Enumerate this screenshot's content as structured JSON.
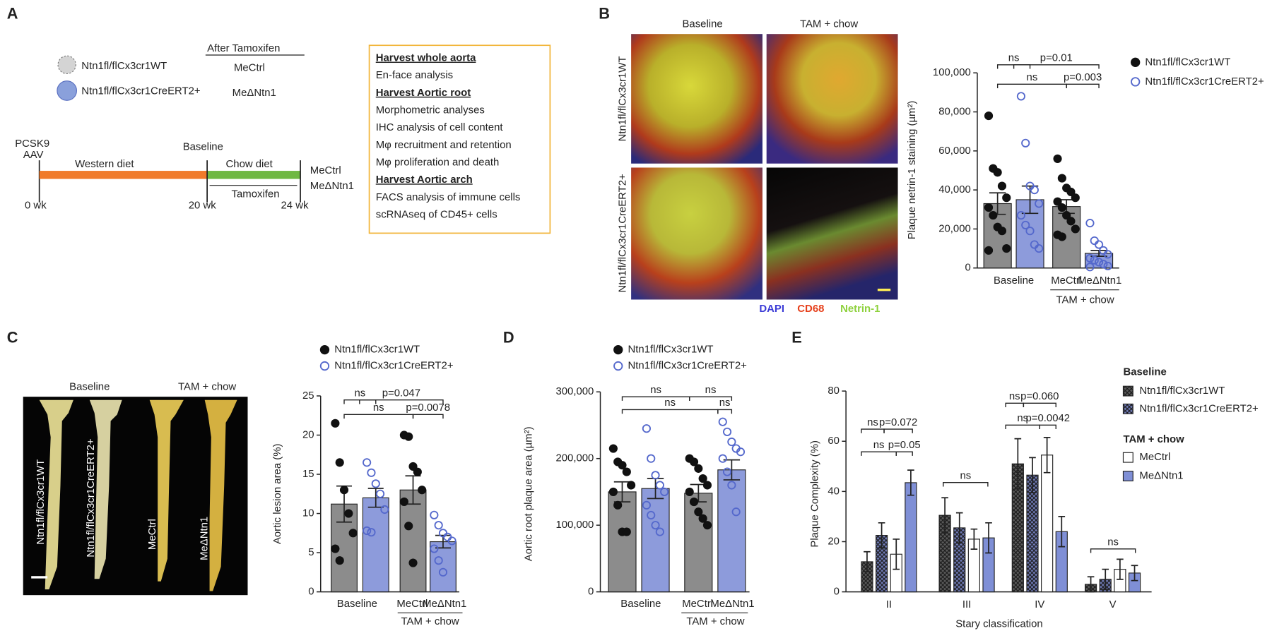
{
  "panels": {
    "a": {
      "label": "A",
      "after_title": "After Tamoxifen",
      "mice": [
        {
          "name": "Ntn1fl/flCx3cr1WT",
          "short": "MeCtrl"
        },
        {
          "name": "Ntn1fl/flCx3cr1CreERT2+",
          "short": "MeΔNtn1"
        }
      ],
      "start": [
        "PCSK9",
        "AAV"
      ],
      "segments": [
        "Western diet",
        "Chow diet",
        "Tamoxifen"
      ],
      "milestone": "Baseline",
      "weeks": [
        "0 wk",
        "20 wk",
        "24 wk"
      ],
      "end_groups": [
        "MeCtrl",
        "MeΔNtn1"
      ],
      "box": [
        {
          "heading": "Harvest whole aorta",
          "items": [
            "En-face analysis"
          ]
        },
        {
          "heading": "Harvest Aortic root",
          "items": [
            "Morphometric analyses",
            "IHC analysis of cell content",
            "Mφ recruitment and retention",
            "Mφ proliferation and death"
          ]
        },
        {
          "heading": "Harvest Aortic arch",
          "items": [
            "FACS analysis of immune cells",
            "scRNAseq of CD45+ cells"
          ]
        }
      ]
    },
    "b": {
      "label": "B",
      "columns": [
        "Baseline",
        "TAM + chow"
      ],
      "rows": [
        "Ntn1fl/flCx3cr1WT",
        "Ntn1fl/flCx3cr1CreERT2+"
      ],
      "stains": [
        {
          "text": "DAPI",
          "color": "#3b3bd6"
        },
        {
          "text": "CD68",
          "color": "#e6401c"
        },
        {
          "text": "Netrin-1",
          "color": "#8ed13c"
        }
      ]
    },
    "c": {
      "label": "C",
      "columns": [
        "Baseline",
        "TAM + chow"
      ],
      "aorta_labels": [
        "Ntn1fl/flCx3cr1WT",
        "Ntn1fl/flCx3cr1CreERT2+",
        "MeCtrl",
        "MeΔNtn1"
      ]
    },
    "d": {
      "label": "D"
    },
    "e": {
      "label": "E"
    }
  },
  "chart_data": [
    {
      "type": "bar",
      "ylabel": "Plaque netrin-1 staining (µm²)",
      "ylim": [
        0,
        100000
      ],
      "yticks": [
        0,
        {
          "value": 20000,
          "label": "20,000"
        },
        {
          "value": 40000,
          "label": "40,000"
        },
        {
          "value": 60000,
          "label": "60,000"
        },
        {
          "value": 80000,
          "label": "80,000"
        },
        {
          "value": 100000,
          "label": "100,000"
        }
      ],
      "x_labels": [
        "Baseline",
        "MeCtrl",
        "MeΔNtn1",
        "TAM + chow"
      ],
      "comparisons": [
        "ns",
        "p=0.01",
        "ns",
        "p=0.003"
      ],
      "series": [
        {
          "name": "Ntn1fl/flCx3cr1WT",
          "color": "#8c8c8c",
          "marker": "filled",
          "marker_color": "#111111",
          "values": [
            33000,
            31500
          ],
          "errors": [
            5500,
            3500
          ],
          "points": [
            [
              78000,
              51000,
              49000,
              42000,
              36000,
              31000,
              27000,
              21000,
              19000,
              10000,
              9000
            ],
            [
              56000,
              46000,
              41000,
              39000,
              36000,
              34000,
              31000,
              27000,
              24000,
              20000,
              17000,
              16000
            ]
          ]
        },
        {
          "name": "Ntn1fl/flCx3cr1CreERT2+",
          "color": "#8d9bdb",
          "marker": "open",
          "marker_color": "#5468cc",
          "values": [
            35000,
            7500
          ],
          "errors": [
            7000,
            1500
          ],
          "points": [
            [
              88000,
              64000,
              42000,
              40000,
              33000,
              27000,
              22000,
              19000,
              12000,
              10000
            ],
            [
              23000,
              14000,
              12000,
              9000,
              7000,
              5000,
              4000,
              3000,
              2000,
              1000,
              500
            ]
          ]
        }
      ]
    },
    {
      "type": "bar",
      "ylabel": "Aortic lesion area (%)",
      "ylim": [
        0,
        25
      ],
      "yticks": [
        0,
        5,
        10,
        15,
        20,
        25
      ],
      "x_labels": [
        "Baseline",
        "MeCtrl",
        "MeΔNtn1",
        "TAM + chow"
      ],
      "comparisons": [
        "ns",
        "p=0.047",
        "ns",
        "p=0.0078"
      ],
      "series": [
        {
          "name": "Ntn1fl/flCx3cr1WT",
          "color": "#8c8c8c",
          "marker": "filled",
          "marker_color": "#111111",
          "values": [
            11.2,
            13.0
          ],
          "errors": [
            2.3,
            1.8
          ],
          "points": [
            [
              21.5,
              16.5,
              13,
              10,
              7.5,
              5.5,
              4
            ],
            [
              20,
              19.8,
              16,
              15.3,
              13,
              11.5,
              8.4,
              3.7
            ]
          ]
        },
        {
          "name": "Ntn1fl/flCx3cr1CreERT2+",
          "color": "#8d9bdb",
          "marker": "open",
          "marker_color": "#5468cc",
          "values": [
            12.0,
            6.4
          ],
          "errors": [
            1.2,
            0.8
          ],
          "points": [
            [
              16.5,
              15.2,
              13.8,
              12.5,
              10.5,
              7.8,
              7.6
            ],
            [
              9.8,
              8.5,
              7.5,
              7,
              6.5,
              5.5,
              4,
              2.5
            ]
          ]
        }
      ]
    },
    {
      "type": "bar",
      "ylabel": "Aortic root plaque area (µm²)",
      "ylim": [
        0,
        300000
      ],
      "yticks": [
        0,
        {
          "value": 100000,
          "label": "100,000"
        },
        {
          "value": 200000,
          "label": "200,000"
        },
        {
          "value": 300000,
          "label": "300,000"
        }
      ],
      "x_labels": [
        "Baseline",
        "MeCtrl",
        "MeΔNtn1",
        "TAM + chow"
      ],
      "comparisons": [
        "ns",
        "ns",
        "ns",
        "ns"
      ],
      "series": [
        {
          "name": "Ntn1fl/flCx3cr1WT",
          "color": "#8c8c8c",
          "marker": "filled",
          "marker_color": "#111111",
          "values": [
            150000,
            148000
          ],
          "errors": [
            15000,
            13000
          ],
          "points": [
            [
              215000,
              195000,
              190000,
              180000,
              160000,
              150000,
              130000,
              90000,
              90000
            ],
            [
              200000,
              195000,
              185000,
              170000,
              160000,
              150000,
              135000,
              120000,
              110000,
              100000
            ]
          ]
        },
        {
          "name": "Ntn1fl/flCx3cr1CreERT2+",
          "color": "#8d9bdb",
          "marker": "open",
          "marker_color": "#5468cc",
          "values": [
            155000,
            183000
          ],
          "errors": [
            15000,
            15000
          ],
          "points": [
            [
              245000,
              200000,
              175000,
              160000,
              150000,
              130000,
              115000,
              100000,
              90000
            ],
            [
              255000,
              240000,
              225000,
              215000,
              210000,
              200000,
              180000,
              160000,
              120000
            ]
          ]
        }
      ]
    },
    {
      "type": "bar",
      "ylabel": "Plaque Complexity (%)",
      "xlabel": "Stary classification",
      "ylim": [
        0,
        80
      ],
      "yticks": [
        0,
        20,
        40,
        60,
        80
      ],
      "categories": [
        "II",
        "III",
        "IV",
        "V"
      ],
      "legend_groups": [
        "Baseline",
        "TAM + chow"
      ],
      "comparisons": [
        "ns",
        "p=0.072",
        "ns",
        "p=0.05",
        "ns",
        "ns",
        "p=0.060",
        "ns",
        "p=0.0042",
        "ns"
      ],
      "series": [
        {
          "name": "Ntn1fl/flCx3cr1WT",
          "color": "#5a5a5a",
          "pattern": "crosshatch",
          "values": [
            12,
            30.5,
            51,
            3
          ],
          "errors": [
            4,
            7,
            10,
            3
          ]
        },
        {
          "name": "Ntn1fl/flCx3cr1CreERT2+",
          "color": "#6f7ab5",
          "pattern": "crosshatch",
          "values": [
            22.5,
            25.5,
            46.5,
            5
          ],
          "errors": [
            5,
            6,
            7,
            4
          ]
        },
        {
          "name": "MeCtrl",
          "color": "#ffffff",
          "values": [
            15,
            21,
            54.5,
            9
          ],
          "errors": [
            6,
            4,
            7,
            4
          ]
        },
        {
          "name": "MeΔNtn1",
          "color": "#7f8fd6",
          "values": [
            43.5,
            21.5,
            24,
            7.5
          ],
          "errors": [
            5,
            6,
            6,
            3
          ]
        }
      ]
    }
  ]
}
